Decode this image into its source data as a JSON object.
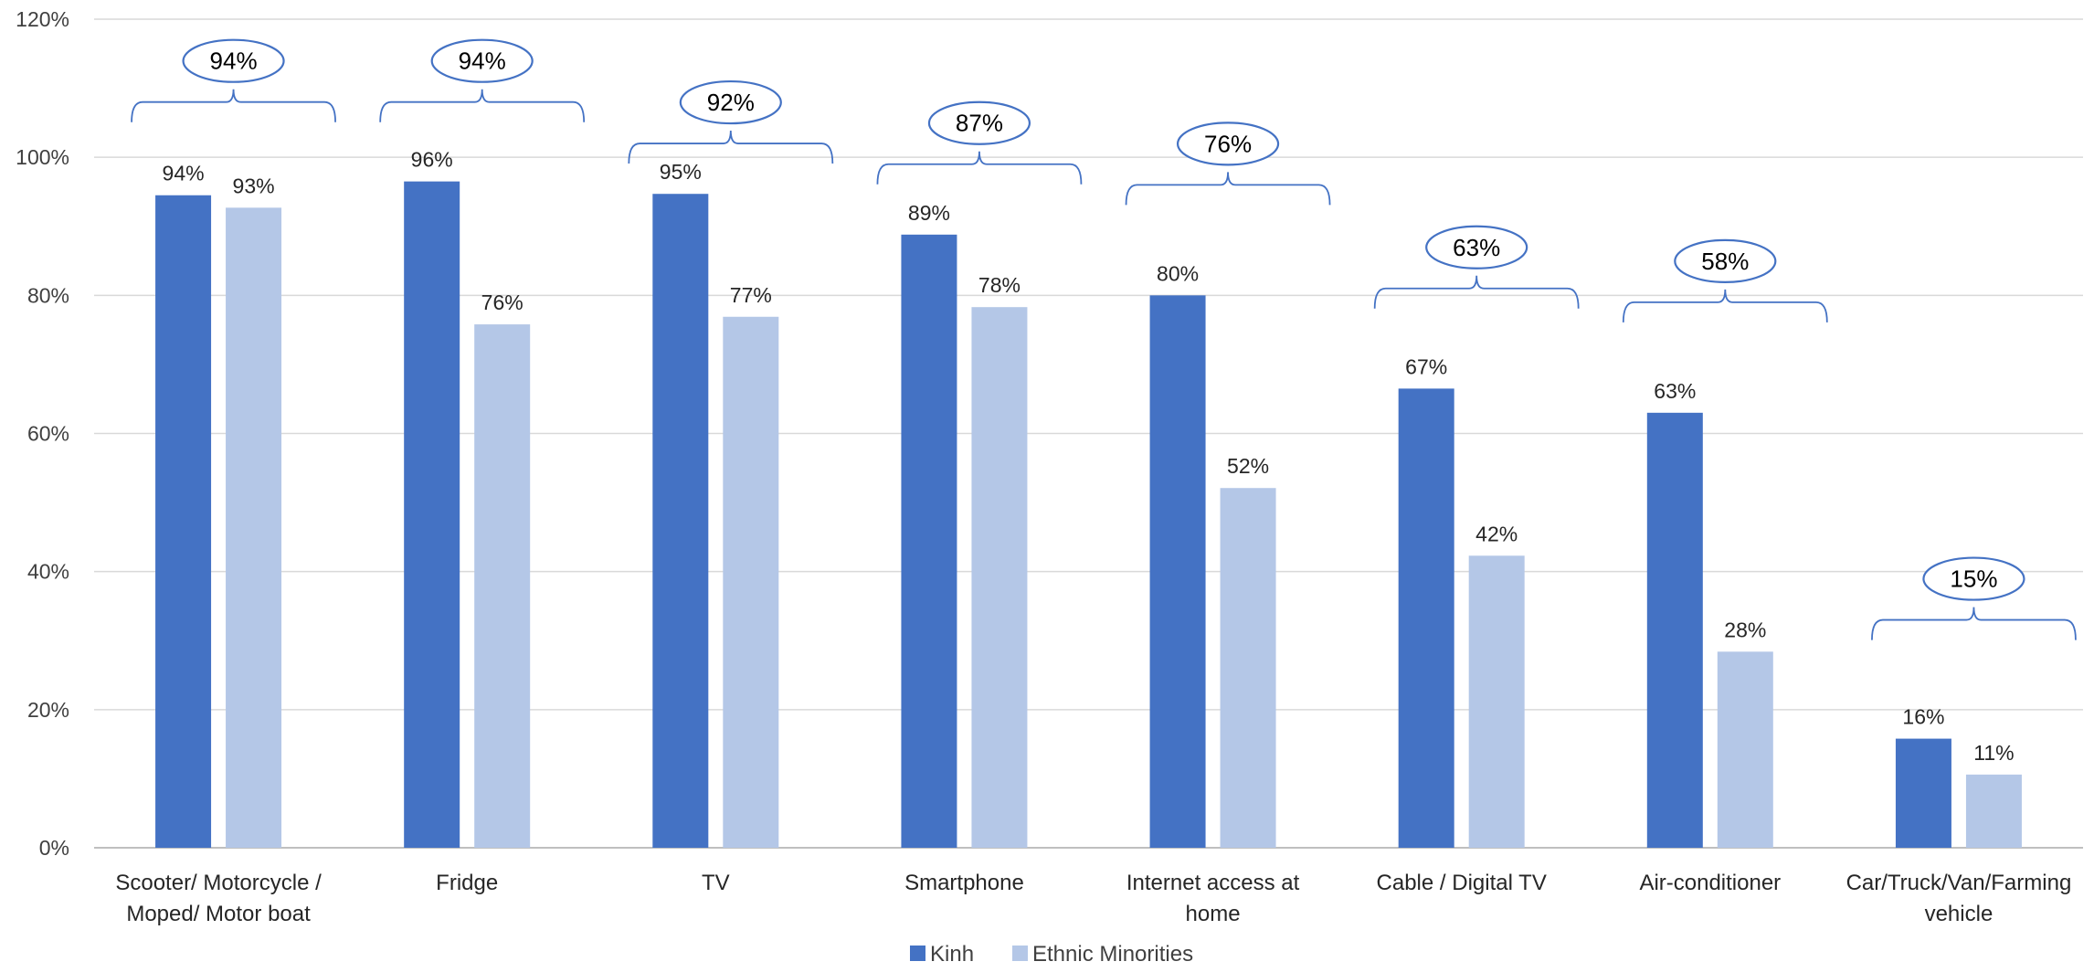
{
  "chart_data": {
    "type": "bar",
    "categories": [
      [
        "Scooter/ Motorcycle /",
        "Moped/ Motor boat"
      ],
      [
        "Fridge"
      ],
      [
        "TV"
      ],
      [
        "Smartphone"
      ],
      [
        "Internet access at",
        "home"
      ],
      [
        "Cable / Digital TV"
      ],
      [
        "Air-conditioner"
      ],
      [
        "Car/Truck/Van/Farming",
        "vehicle"
      ]
    ],
    "series": [
      {
        "name": "Kinh",
        "color": "#4472C4",
        "values": [
          94.5,
          96.5,
          94.7,
          88.8,
          80.0,
          66.5,
          63.0,
          15.8
        ],
        "labels": [
          "94%",
          "96%",
          "95%",
          "89%",
          "80%",
          "67%",
          "63%",
          "16%"
        ]
      },
      {
        "name": "Ethnic Minorities",
        "color": "#B4C7E7",
        "values": [
          92.7,
          75.8,
          76.9,
          78.3,
          52.1,
          42.3,
          28.4,
          10.6
        ],
        "labels": [
          "93%",
          "76%",
          "77%",
          "78%",
          "52%",
          "42%",
          "28%",
          "11%"
        ]
      }
    ],
    "overall": {
      "labels": [
        "94%",
        "94%",
        "92%",
        "87%",
        "76%",
        "63%",
        "58%",
        "15%"
      ],
      "values": [
        94,
        94,
        92,
        87,
        76,
        63,
        58,
        15
      ],
      "bracket_level": [
        108,
        108,
        102,
        99,
        96,
        81,
        79,
        33
      ],
      "color": "#4472C4"
    },
    "ylim": [
      0,
      120
    ],
    "yticks": [
      0,
      20,
      40,
      60,
      80,
      100,
      120
    ],
    "ytick_labels": [
      "0%",
      "20%",
      "40%",
      "60%",
      "80%",
      "100%",
      "120%"
    ],
    "grid": true,
    "legend": "bottom-center"
  }
}
